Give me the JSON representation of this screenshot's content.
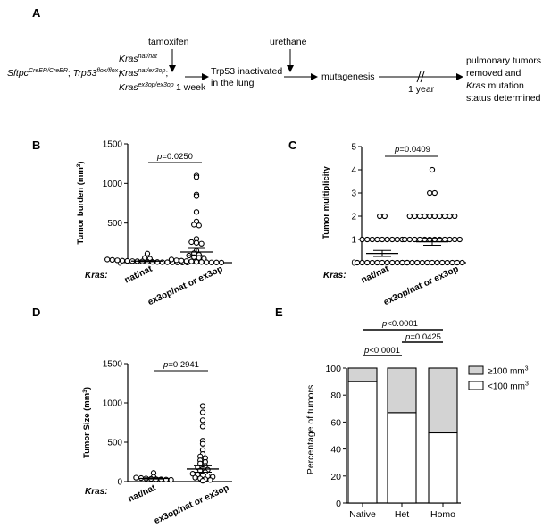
{
  "panels": {
    "A": {
      "label": "A",
      "genotype": {
        "sftpc_base": "Sftpc",
        "sftpc_sup": "CreER/CreER",
        "sep1": ";",
        "trp53_base": "Trp53",
        "trp53_sup": "flox/flox",
        "sep2": ";",
        "kras_lines": [
          {
            "base": "Kras",
            "sup": "nat/nat",
            "suffix": ""
          },
          {
            "base": "Kras",
            "sup": "nat/ex3op",
            "suffix": ";"
          },
          {
            "base": "Kras",
            "sup": "ex3op/ex3op",
            "suffix": ""
          }
        ]
      },
      "steps": {
        "tamoxifen": "tamoxifen",
        "week": "1 week",
        "trp53_line1": "Trp53 inactivated",
        "trp53_line2": "in the lung",
        "urethane": "urethane",
        "mutagenesis": "mutagenesis",
        "year": "1 year",
        "outcome_line1": "pulmonary tumors",
        "outcome_line2": "removed and",
        "outcome_line3_italic": "Kras",
        "outcome_line3_rest": " mutation",
        "outcome_line4": "status determined"
      }
    },
    "B": {
      "label": "B",
      "ylabel_main": "Tumor burden (mm",
      "ylabel_sup": "3",
      "ylabel_close": ")",
      "pvalue_p": "p",
      "pvalue_rest": "=0.0250"
    },
    "C": {
      "label": "C",
      "ylabel_main": "Tumor multiplicity",
      "pvalue_p": "p",
      "pvalue_rest": "=0.0409"
    },
    "D": {
      "label": "D",
      "ylabel_main": "Tumor Size (mm",
      "ylabel_sup": "3",
      "ylabel_close": ")",
      "pvalue_p": "p",
      "pvalue_rest": "=0.2941"
    },
    "E": {
      "label": "E",
      "ylabel": "Percentage of tumors",
      "pvalues": [
        {
          "p": "p",
          "rest": "<0.0001"
        },
        {
          "p": "p",
          "rest": "=0.0425"
        },
        {
          "p": "p",
          "rest": "<0.0001"
        }
      ]
    },
    "kras_label": "Kras:"
  },
  "chart_data": [
    {
      "panel": "B",
      "type": "scatter",
      "ylabel": "Tumor burden (mm3)",
      "categories": [
        "nat/nat",
        "ex3op/nat or ex3op"
      ],
      "ylim": [
        0,
        1500
      ],
      "yticks": [
        0,
        500,
        1000,
        1500
      ],
      "groups": [
        {
          "name": "nat/nat",
          "values": [
            115,
            60,
            50,
            40,
            35,
            30,
            25,
            22,
            20,
            18,
            15,
            12,
            10,
            8,
            6,
            5,
            4,
            3,
            2,
            1
          ],
          "mean": 20,
          "sem": 7
        },
        {
          "name": "ex3op/nat or ex3op",
          "values": [
            1100,
            1080,
            860,
            840,
            640,
            520,
            480,
            470,
            300,
            260,
            250,
            240,
            150,
            120,
            100,
            90,
            70,
            60,
            50,
            40,
            30,
            25,
            20,
            15,
            10,
            8,
            5,
            3,
            2,
            1
          ],
          "mean": 135,
          "sem": 45
        }
      ],
      "pvalue": "p=0.0250"
    },
    {
      "panel": "C",
      "type": "scatter",
      "ylabel": "Tumor multiplicity",
      "categories": [
        "nat/nat",
        "ex3op/nat or ex3op"
      ],
      "ylim": [
        0,
        5
      ],
      "yticks": [
        0,
        1,
        2,
        3,
        4,
        5
      ],
      "groups": [
        {
          "name": "nat/nat",
          "values": [
            2,
            2,
            1,
            1,
            1,
            1,
            1,
            1,
            1,
            1,
            1,
            0,
            0,
            0,
            0,
            0,
            0,
            0,
            0,
            0,
            0,
            0
          ],
          "mean": 0.4,
          "sem": 0.13
        },
        {
          "name": "ex3op/nat or ex3op",
          "values": [
            4,
            3,
            3,
            2,
            2,
            2,
            2,
            2,
            2,
            2,
            2,
            2,
            2,
            1,
            1,
            1,
            1,
            1,
            1,
            1,
            1,
            1,
            1,
            1,
            1,
            0,
            0,
            0,
            0,
            0,
            0,
            0,
            0,
            0,
            0,
            0,
            0,
            0
          ],
          "mean": 0.9,
          "sem": 0.15
        },
        {
          "name": "nat/nat",
          "values": [],
          "mean": null,
          "sem": null
        }
      ],
      "pvalue": "p=0.0409"
    },
    {
      "panel": "D",
      "type": "scatter",
      "ylabel": "Tumor Size (mm3)",
      "categories": [
        "nat/nat",
        "ex3op/nat or ex3op"
      ],
      "ylim": [
        0,
        1500
      ],
      "yticks": [
        0,
        500,
        1000,
        1500
      ],
      "groups": [
        {
          "name": "nat/nat",
          "values": [
            110,
            60,
            50,
            45,
            40,
            35,
            30,
            28,
            25,
            22
          ],
          "mean": 40,
          "sem": 8
        },
        {
          "name": "ex3op/nat or ex3op",
          "values": [
            960,
            880,
            780,
            700,
            520,
            480,
            400,
            350,
            320,
            300,
            270,
            250,
            230,
            200,
            180,
            160,
            150,
            140,
            120,
            100,
            90,
            80,
            70,
            60,
            50,
            40,
            30,
            20,
            10
          ],
          "mean": 160,
          "sem": 40
        }
      ],
      "pvalue": "p=0.2941"
    },
    {
      "panel": "E",
      "type": "bar",
      "stacked": true,
      "ylabel": "Percentage of tumors",
      "categories": [
        "Native",
        "Het",
        "Homo"
      ],
      "ylim": [
        0,
        100
      ],
      "yticks": [
        0,
        20,
        40,
        60,
        80,
        100
      ],
      "series": [
        {
          "name": "<100 mm",
          "sup": "3",
          "values": [
            90,
            67,
            52
          ],
          "color": "#ffffff"
        },
        {
          "name": "≥100 mm",
          "sup": "3",
          "values": [
            10,
            33,
            48
          ],
          "color": "#d3d3d3"
        }
      ],
      "comparisons": [
        {
          "from": "Native",
          "to": "Het",
          "label": "p<0.0001"
        },
        {
          "from": "Het",
          "to": "Homo",
          "label": "p=0.0425"
        },
        {
          "from": "Native",
          "to": "Homo",
          "label": "p<0.0001"
        }
      ],
      "legend": "right"
    }
  ]
}
